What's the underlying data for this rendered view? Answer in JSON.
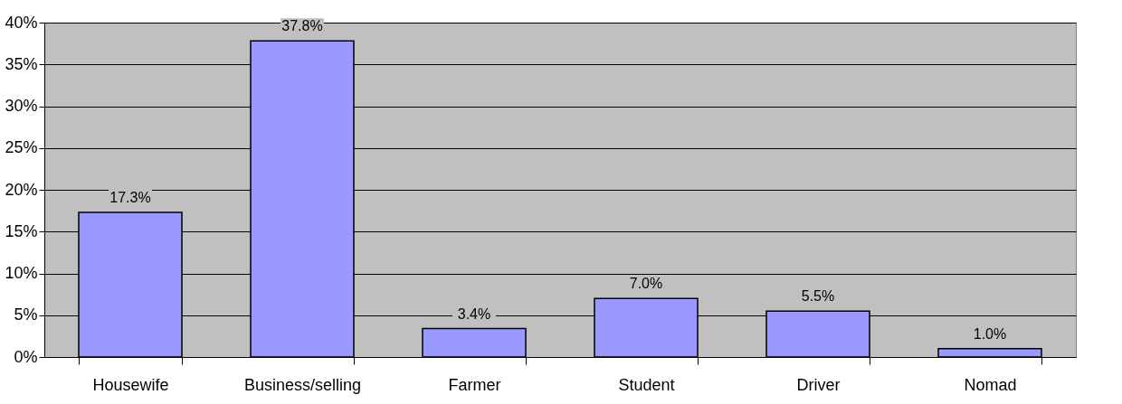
{
  "chart_data": {
    "type": "bar",
    "categories": [
      "Housewife",
      "Business/selling",
      "Farmer",
      "Student",
      "Driver",
      "Nomad"
    ],
    "values": [
      17.3,
      37.8,
      3.4,
      7.0,
      5.5,
      1.0
    ],
    "value_labels": [
      "17.3%",
      "37.8%",
      "3.4%",
      "7.0%",
      "5.5%",
      "1.0%"
    ],
    "color": "#9999ff",
    "ylim": [
      0,
      40
    ],
    "yticks": [
      {
        "value": 0,
        "label": "0%"
      },
      {
        "value": 5,
        "label": "5%"
      },
      {
        "value": 10,
        "label": "10%"
      },
      {
        "value": 15,
        "label": "15%"
      },
      {
        "value": 20,
        "label": "20%"
      },
      {
        "value": 25,
        "label": "25%"
      },
      {
        "value": 30,
        "label": "30%"
      },
      {
        "value": 35,
        "label": "35%"
      },
      {
        "value": 40,
        "label": "40%"
      }
    ],
    "grid": "y"
  }
}
